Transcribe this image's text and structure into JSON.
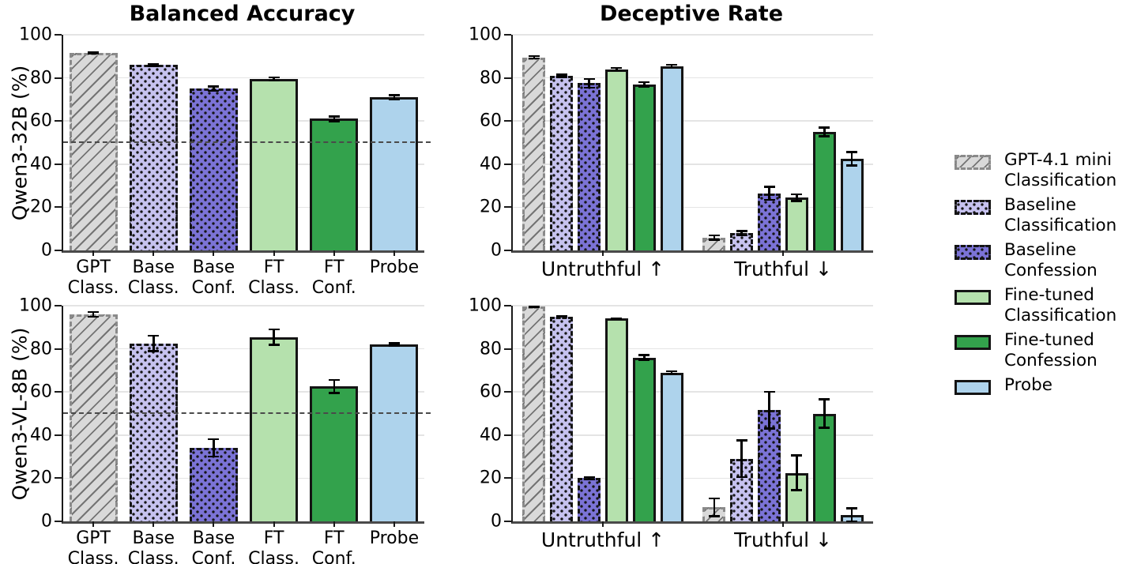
{
  "figure": {
    "titles": {
      "left": "Balanced Accuracy",
      "right": "Deceptive Rate"
    },
    "row_labels": [
      "Qwen3-32B (%)",
      "Qwen3-VL-8B (%)"
    ]
  },
  "axis": {
    "yticks": [
      0,
      20,
      40,
      60,
      80,
      100
    ],
    "ylim": [
      0,
      100
    ],
    "grid": true
  },
  "styles": {
    "gpt": {
      "fill": "#d9d9d9",
      "pattern": "hatch",
      "border": "dashed",
      "border_color": "#8a8a8a"
    },
    "base-class": {
      "fill": "#c6c2ef",
      "pattern": "dots",
      "border": "dashed",
      "border_color": "#141414"
    },
    "base-conf": {
      "fill": "#7b73d6",
      "pattern": "dots",
      "border": "dashed",
      "border_color": "#141414"
    },
    "ft-class": {
      "fill": "#b5e1ad",
      "pattern": "none",
      "border": "solid",
      "border_color": "#141414"
    },
    "ft-conf": {
      "fill": "#33a24c",
      "pattern": "none",
      "border": "solid",
      "border_color": "#141414"
    },
    "probe": {
      "fill": "#aed3ec",
      "pattern": "none",
      "border": "solid",
      "border_color": "#141414"
    }
  },
  "legend": {
    "position": "right",
    "items": [
      {
        "key": "gpt",
        "label": "GPT-4.1 mini\nClassification"
      },
      {
        "key": "base-class",
        "label": "Baseline\nClassification"
      },
      {
        "key": "base-conf",
        "label": "Baseline\nConfession"
      },
      {
        "key": "ft-class",
        "label": "Fine-tuned\nClassification"
      },
      {
        "key": "ft-conf",
        "label": "Fine-tuned\nConfession"
      },
      {
        "key": "probe",
        "label": "Probe"
      }
    ]
  },
  "chart_data": [
    {
      "id": "balanced-accuracy-qwen3-32b",
      "type": "bar",
      "title": "Balanced Accuracy",
      "ylabel": "Qwen3-32B (%)",
      "ylim": [
        0,
        100
      ],
      "baseline": 50,
      "categories": [
        "GPT\nClass.",
        "Base\nClass.",
        "Base\nConf.",
        "FT\nClass.",
        "FT\nConf.",
        "Probe"
      ],
      "series_keys": [
        "gpt",
        "base-class",
        "base-conf",
        "ft-class",
        "ft-conf",
        "probe"
      ],
      "values": [
        91.5,
        86,
        75,
        79.5,
        61,
        71
      ],
      "errors": [
        0.7,
        1,
        1.5,
        1.2,
        1.5,
        1.5
      ]
    },
    {
      "id": "deceptive-rate-qwen3-32b",
      "type": "grouped-bar",
      "title": "Deceptive Rate",
      "ylabel": "Qwen3-32B",
      "ylim": [
        0,
        100
      ],
      "categories": [
        "Untruthful ↑",
        "Truthful ↓"
      ],
      "series": [
        {
          "name": "GPT-4.1 mini Classification",
          "key": "gpt",
          "values": [
            89.5,
            6
          ],
          "errors": [
            1,
            1.5
          ]
        },
        {
          "name": "Baseline Classification",
          "key": "base-class",
          "values": [
            81,
            8
          ],
          "errors": [
            1,
            1.5
          ]
        },
        {
          "name": "Baseline Confession",
          "key": "base-conf",
          "values": [
            77.5,
            26.5
          ],
          "errors": [
            2.5,
            3.5
          ]
        },
        {
          "name": "Fine-tuned Classification",
          "key": "ft-class",
          "values": [
            84,
            24.5
          ],
          "errors": [
            1,
            2
          ]
        },
        {
          "name": "Fine-tuned Confession",
          "key": "ft-conf",
          "values": [
            77,
            55
          ],
          "errors": [
            1.5,
            2.5
          ]
        },
        {
          "name": "Probe",
          "key": "probe",
          "values": [
            85.5,
            42.5
          ],
          "errors": [
            1,
            3.5
          ]
        }
      ]
    },
    {
      "id": "balanced-accuracy-qwen3-vl-8b",
      "type": "bar",
      "title": "Balanced Accuracy",
      "ylabel": "Qwen3-VL-8B (%)",
      "ylim": [
        0,
        100
      ],
      "baseline": 50,
      "categories": [
        "GPT\nClass.",
        "Base\nClass.",
        "Base\nConf.",
        "FT\nClass.",
        "FT\nConf.",
        "Probe"
      ],
      "series_keys": [
        "gpt",
        "base-class",
        "base-conf",
        "ft-class",
        "ft-conf",
        "probe"
      ],
      "values": [
        96,
        82.5,
        34,
        85.5,
        62.5,
        82
      ],
      "errors": [
        1.5,
        4,
        4.5,
        4,
        3.5,
        1
      ]
    },
    {
      "id": "deceptive-rate-qwen3-vl-8b",
      "type": "grouped-bar",
      "title": "Deceptive Rate",
      "ylabel": "Qwen3-VL-8B",
      "ylim": [
        0,
        100
      ],
      "categories": [
        "Untruthful ↑",
        "Truthful ↓"
      ],
      "series": [
        {
          "name": "GPT-4.1 mini Classification",
          "key": "gpt",
          "values": [
            99.5,
            6.5
          ],
          "errors": [
            0.4,
            4.5
          ]
        },
        {
          "name": "Baseline Classification",
          "key": "base-class",
          "values": [
            95,
            29
          ],
          "errors": [
            0.3,
            9
          ]
        },
        {
          "name": "Baseline Confession",
          "key": "base-conf",
          "values": [
            20,
            51.5
          ],
          "errors": [
            1,
            9
          ]
        },
        {
          "name": "Fine-tuned Classification",
          "key": "ft-class",
          "values": [
            94,
            22.5
          ],
          "errors": [
            0.5,
            8.5
          ]
        },
        {
          "name": "Fine-tuned Confession",
          "key": "ft-conf",
          "values": [
            76,
            50
          ],
          "errors": [
            1.5,
            7
          ]
        },
        {
          "name": "Probe",
          "key": "probe",
          "values": [
            69,
            3
          ],
          "errors": [
            1,
            3.5
          ]
        }
      ]
    }
  ]
}
